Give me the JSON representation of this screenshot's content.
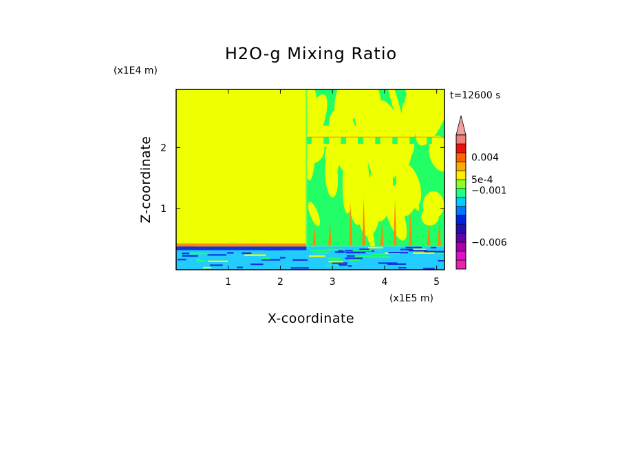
{
  "chart_data": {
    "type": "heatmap",
    "title": "H2O-g Mixing Ratio",
    "xlabel": "X-coordinate",
    "ylabel": "Z-coordinate",
    "x_unit": "(x1E5 m)",
    "y_unit": "(x1E4 m)",
    "time_label": "t=12600 s",
    "xlim": [
      0,
      5.15
    ],
    "ylim": [
      0,
      2.95
    ],
    "x_ticks": [
      "1",
      "2",
      "3",
      "4",
      "5"
    ],
    "x_tick_values": [
      1,
      2,
      3,
      4,
      5
    ],
    "y_ticks": [
      "1",
      "2"
    ],
    "y_tick_values": [
      1,
      2
    ],
    "colorbar": {
      "extend": "max",
      "levels_colors": [
        "#ee22aa",
        "#dd11cc",
        "#aa00aa",
        "#6600aa",
        "#2211aa",
        "#0022dd",
        "#0077ff",
        "#00ccff",
        "#22ff88",
        "#88ff22",
        "#ffee00",
        "#ffaa00",
        "#ff6600",
        "#ee1111",
        "#f27d7d",
        "#f2a0a0"
      ],
      "labels": [
        "0.004",
        "5e-4",
        "−0.001",
        "−0.006"
      ],
      "label_levels": [
        12.5,
        10,
        8.8,
        3
      ]
    },
    "regions": [
      {
        "name": "uniform-moist-layer",
        "x": [
          0,
          2.5
        ],
        "z": [
          0.4,
          2.95
        ],
        "color": "#eeff00"
      },
      {
        "name": "outline-boundary",
        "x": [
          0,
          2.5
        ],
        "z": [
          0.36,
          0.42
        ],
        "color": "#ff8800"
      },
      {
        "name": "surface-layer-blue",
        "x": [
          0,
          5.15
        ],
        "z": [
          0,
          0.38
        ],
        "color": "#22bbff"
      },
      {
        "name": "turbulent-region",
        "x": [
          2.5,
          5.15
        ],
        "z": [
          0.38,
          2.95
        ],
        "color": "#22ff66"
      }
    ],
    "colors": {
      "yellow": "#eeff00",
      "green": "#22ff66",
      "cyan": "#22ccff",
      "blue": "#1133dd",
      "orange": "#ff8800"
    }
  }
}
